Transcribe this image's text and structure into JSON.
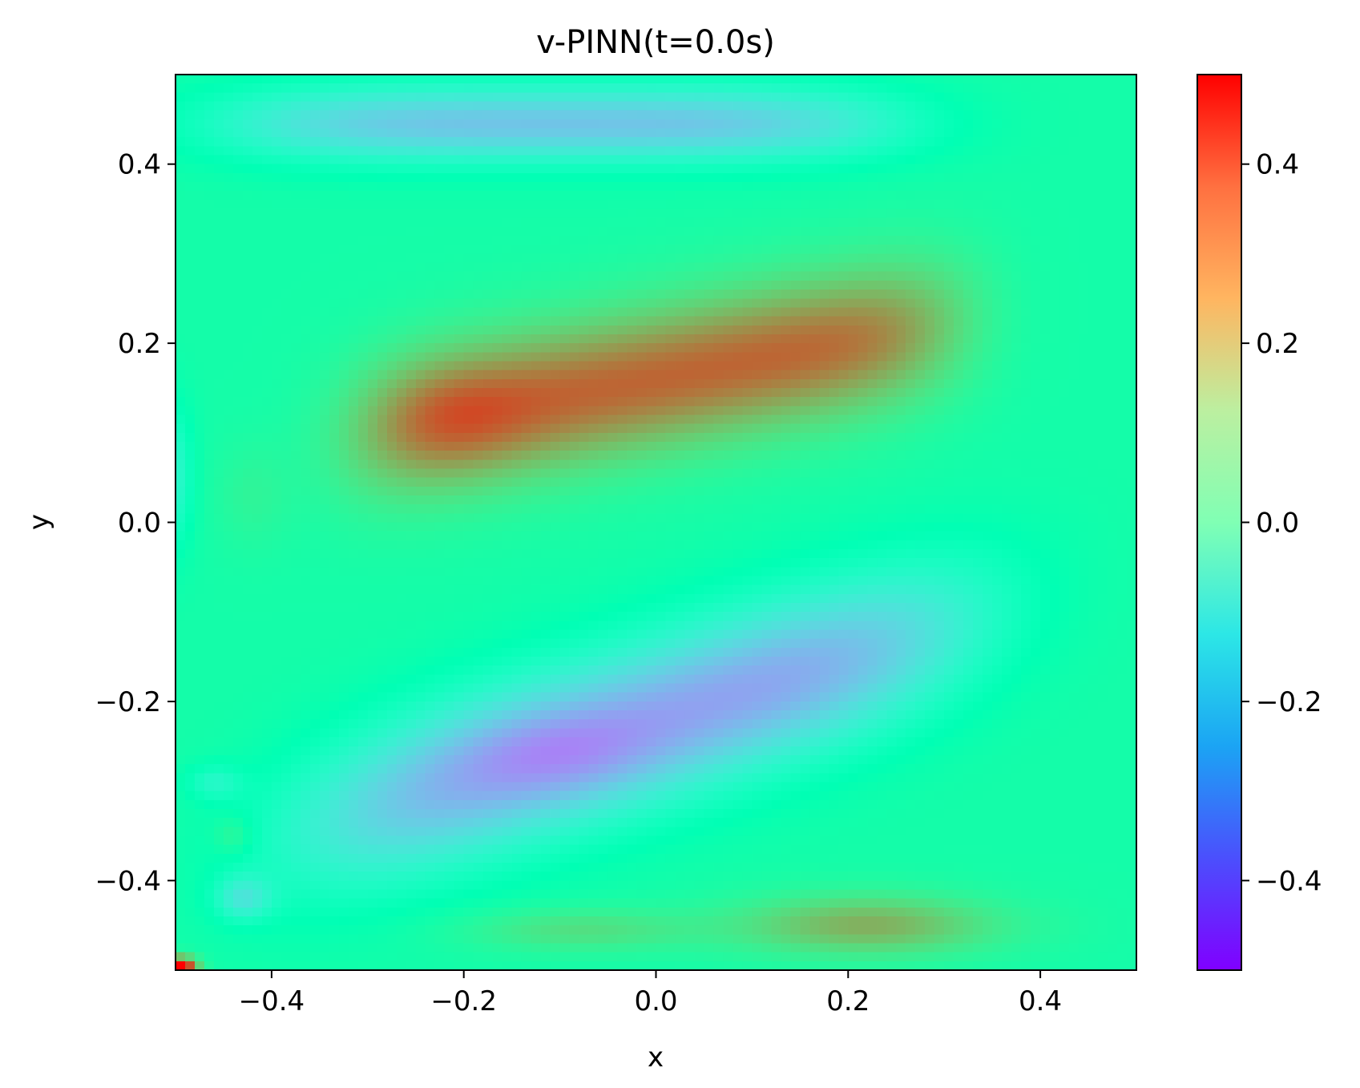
{
  "chart_data": {
    "type": "heatmap",
    "title": "v-PINN(t=0.0s)",
    "xlabel": "x",
    "ylabel": "y",
    "xlim": [
      -0.5,
      0.5
    ],
    "ylim": [
      -0.5,
      0.5
    ],
    "x_ticks": [
      -0.4,
      -0.2,
      0.0,
      0.2,
      0.4
    ],
    "x_tick_labels": [
      "−0.4",
      "−0.2",
      "0.0",
      "0.2",
      "0.4"
    ],
    "y_ticks": [
      -0.4,
      -0.2,
      0.0,
      0.2,
      0.4
    ],
    "y_tick_labels": [
      "−0.4",
      "−0.2",
      "0.0",
      "0.2",
      "0.4"
    ],
    "colormap": "rainbow",
    "colorbar": {
      "range": [
        -0.5,
        0.5
      ],
      "ticks": [
        -0.4,
        -0.2,
        0.0,
        0.2,
        0.4
      ],
      "tick_labels": [
        "−0.4",
        "−0.2",
        "0.0",
        "0.2",
        "0.4"
      ]
    },
    "grid": false,
    "field_features": [
      {
        "kind": "band",
        "sign": "positive",
        "x_range": [
          -0.36,
          0.4
        ],
        "y_center_left": 0.1,
        "y_center_right": 0.24,
        "peak": 0.35
      },
      {
        "kind": "band",
        "sign": "negative",
        "x_range": [
          -0.38,
          0.36
        ],
        "y_center_left": -0.27,
        "y_center_right": -0.1,
        "peak": -0.28
      },
      {
        "kind": "band",
        "sign": "negative",
        "x_range": [
          -0.45,
          0.3
        ],
        "y_center": 0.44,
        "peak": -0.2
      },
      {
        "kind": "blob",
        "sign": "positive",
        "x": 0.22,
        "y": -0.45,
        "peak": 0.24
      },
      {
        "kind": "blob",
        "sign": "positive",
        "x": -0.08,
        "y": -0.45,
        "peak": 0.16
      },
      {
        "kind": "blob",
        "sign": "negative",
        "x": -0.43,
        "y": -0.42,
        "peak": -0.15
      },
      {
        "kind": "corner",
        "sign": "positive",
        "x": -0.49,
        "y": -0.495,
        "peak": 0.5
      }
    ],
    "grid_resolution": [
      100,
      100
    ]
  }
}
